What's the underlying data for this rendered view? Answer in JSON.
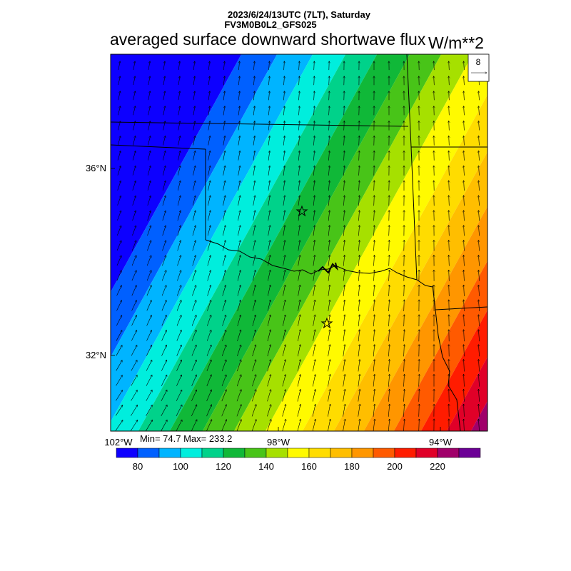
{
  "header": {
    "datetime_line": "2023/6/24/13UTC (7LT), Saturday",
    "model_line": "FV3M0B0L2_GFS025",
    "title": "averaged surface downward shortwave flux",
    "units": "W/m**2"
  },
  "vector_reference": {
    "value": "8"
  },
  "axes": {
    "lat_labels": [
      "36°N",
      "32°N"
    ],
    "lon_labels": [
      "102°W",
      "98°W",
      "94°W"
    ]
  },
  "stats": {
    "text": "Min= 74.7 Max= 233.2",
    "min": 74.7,
    "max": 233.2
  },
  "colorbar": {
    "labels": [
      "80",
      "100",
      "120",
      "140",
      "160",
      "180",
      "200",
      "220"
    ],
    "colors": [
      "#0d00ff",
      "#0060ff",
      "#00b4ff",
      "#00eedd",
      "#00d28a",
      "#10b838",
      "#48c418",
      "#a6e000",
      "#fffa00",
      "#ffdc00",
      "#ffbe00",
      "#ff9600",
      "#ff5a00",
      "#ff1c00",
      "#e00028",
      "#a0006a",
      "#6c0096"
    ]
  },
  "markers": [
    {
      "symbol": "star"
    },
    {
      "symbol": "star"
    }
  ]
}
